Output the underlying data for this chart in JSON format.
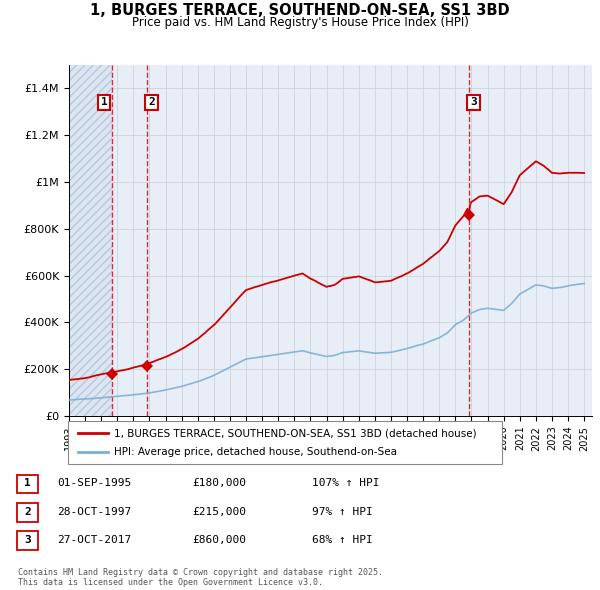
{
  "title": "1, BURGES TERRACE, SOUTHEND-ON-SEA, SS1 3BD",
  "subtitle": "Price paid vs. HM Land Registry's House Price Index (HPI)",
  "transactions": [
    {
      "date": 1995.67,
      "price": 180000,
      "label": "1"
    },
    {
      "date": 1997.83,
      "price": 215000,
      "label": "2"
    },
    {
      "date": 2017.83,
      "price": 860000,
      "label": "3"
    }
  ],
  "transaction_line_color": "#cc0000",
  "hpi_line_color": "#7bafd4",
  "legend_entries": [
    "1, BURGES TERRACE, SOUTHEND-ON-SEA, SS1 3BD (detached house)",
    "HPI: Average price, detached house, Southend-on-Sea"
  ],
  "table_rows": [
    [
      "1",
      "01-SEP-1995",
      "£180,000",
      "107% ↑ HPI"
    ],
    [
      "2",
      "28-OCT-1997",
      "£215,000",
      "97% ↑ HPI"
    ],
    [
      "3",
      "27-OCT-2017",
      "£860,000",
      "68% ↑ HPI"
    ]
  ],
  "footer": "Contains HM Land Registry data © Crown copyright and database right 2025.\nThis data is licensed under the Open Government Licence v3.0.",
  "xmin": 1993.0,
  "xmax": 2025.5,
  "ylim": [
    0,
    1500000
  ],
  "yticks": [
    0,
    200000,
    400000,
    600000,
    800000,
    1000000,
    1200000,
    1400000
  ],
  "ytick_labels": [
    "£0",
    "£200K",
    "£400K",
    "£600K",
    "£800K",
    "£1M",
    "£1.2M",
    "£1.4M"
  ],
  "grid_color": "#cccccc",
  "plot_bg": "#e8eef8",
  "hatch_color": "#c8d4e8"
}
